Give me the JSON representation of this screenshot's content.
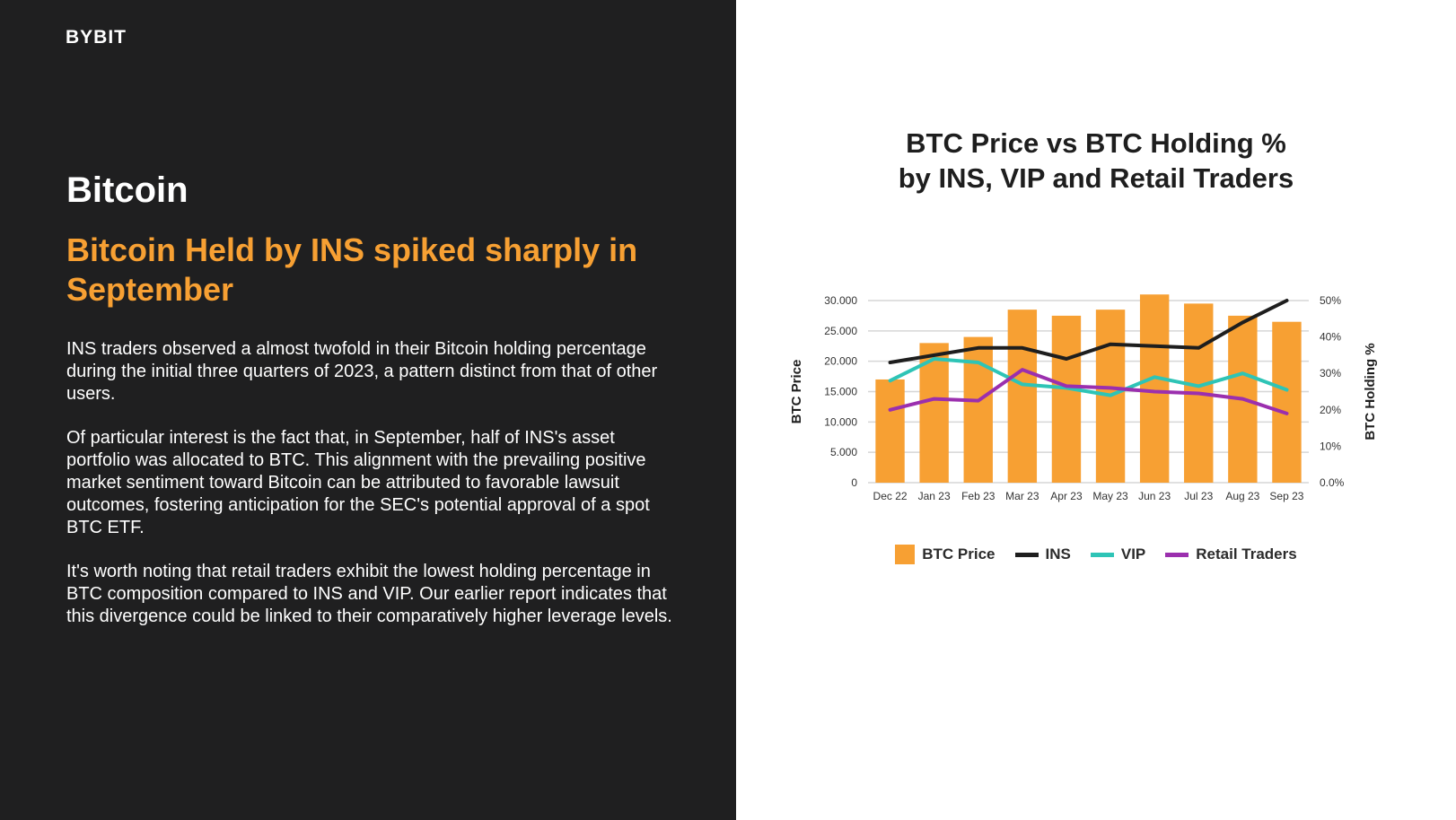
{
  "brand": {
    "logo_text": "BYBIT",
    "accent": "#f7a600"
  },
  "left": {
    "section_title": "Bitcoin",
    "headline": "Bitcoin Held by INS spiked sharply in September",
    "paragraphs": [
      "INS traders observed a almost twofold in their Bitcoin holding percentage during the initial three quarters of 2023, a pattern distinct from that of other users.",
      "Of particular interest is the fact that, in September, half of INS's asset portfolio was allocated to BTC. This alignment with the prevailing positive market sentiment toward Bitcoin can be attributed to favorable lawsuit outcomes, fostering anticipation for the SEC's potential approval of a spot BTC ETF.",
      "It's worth noting that retail traders exhibit the lowest holding percentage in BTC composition compared to INS and VIP. Our earlier report indicates that this divergence could be linked to their comparatively higher leverage levels."
    ]
  },
  "chart_data": {
    "type": "bar+line",
    "title_line1": "BTC Price vs BTC Holding %",
    "title_line2": "by INS, VIP and Retail Traders",
    "categories": [
      "Dec 22",
      "Jan 23",
      "Feb 23",
      "Mar 23",
      "Apr 23",
      "May 23",
      "Jun 23",
      "Jul 23",
      "Aug 23",
      "Sep 23"
    ],
    "ylabel_left": "BTC Price",
    "ylabel_right": "BTC Holding %",
    "ylim_left": [
      0,
      30000
    ],
    "ylim_right": [
      0,
      50
    ],
    "yticks_left": [
      "0",
      "5.000",
      "10.000",
      "15.000",
      "20.000",
      "25.000",
      "30.000"
    ],
    "yticks_right": [
      "0.0%",
      "10%",
      "20%",
      "30%",
      "40%",
      "50%"
    ],
    "bar_series": {
      "name": "BTC Price",
      "color": "#f7a033",
      "values": [
        17000,
        23000,
        24000,
        28500,
        27500,
        28500,
        31000,
        29500,
        27500,
        26500
      ]
    },
    "line_series": [
      {
        "name": "INS",
        "color": "#1e1e1e",
        "values": [
          33,
          35,
          37,
          37,
          34,
          38,
          37.5,
          37,
          44,
          50
        ]
      },
      {
        "name": "VIP",
        "color": "#2ec4b6",
        "values": [
          28,
          34,
          33,
          27,
          26,
          24,
          29,
          26.5,
          30,
          25.5
        ]
      },
      {
        "name": "Retail Traders",
        "color": "#9b2fae",
        "values": [
          20,
          23,
          22.5,
          31,
          26.5,
          26,
          25,
          24.5,
          23,
          19
        ]
      }
    ]
  }
}
